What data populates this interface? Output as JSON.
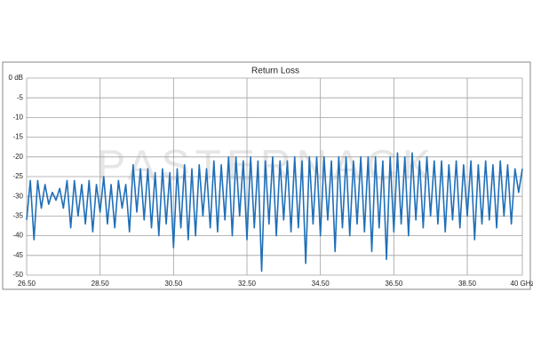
{
  "chart_data": {
    "type": "line",
    "title": "Return Loss",
    "watermark": "PASTERNACK",
    "x": [
      26.5,
      26.6,
      26.7,
      26.8,
      26.9,
      27.0,
      27.1,
      27.2,
      27.3,
      27.4,
      27.5,
      27.6,
      27.7,
      27.8,
      27.9,
      28.0,
      28.1,
      28.2,
      28.3,
      28.4,
      28.5,
      28.6,
      28.7,
      28.8,
      28.9,
      29.0,
      29.1,
      29.2,
      29.3,
      29.4,
      29.5,
      29.6,
      29.7,
      29.8,
      29.9,
      30.0,
      30.1,
      30.2,
      30.3,
      30.4,
      30.5,
      30.6,
      30.7,
      30.8,
      30.9,
      31.0,
      31.1,
      31.2,
      31.3,
      31.4,
      31.5,
      31.6,
      31.7,
      31.8,
      31.9,
      32.0,
      32.1,
      32.2,
      32.3,
      32.4,
      32.5,
      32.6,
      32.7,
      32.8,
      32.9,
      33.0,
      33.1,
      33.2,
      33.3,
      33.4,
      33.5,
      33.6,
      33.7,
      33.8,
      33.9,
      34.0,
      34.1,
      34.2,
      34.3,
      34.4,
      34.5,
      34.6,
      34.7,
      34.8,
      34.9,
      35.0,
      35.1,
      35.2,
      35.3,
      35.4,
      35.5,
      35.6,
      35.7,
      35.8,
      35.9,
      36.0,
      36.1,
      36.2,
      36.3,
      36.4,
      36.5,
      36.6,
      36.7,
      36.8,
      36.9,
      37.0,
      37.1,
      37.2,
      37.3,
      37.4,
      37.5,
      37.6,
      37.7,
      37.8,
      37.9,
      38.0,
      38.1,
      38.2,
      38.3,
      38.4,
      38.5,
      38.6,
      38.7,
      38.8,
      38.9,
      39.0,
      39.1,
      39.2,
      39.3,
      39.4,
      39.5,
      39.6,
      39.7,
      39.8,
      39.9,
      40.0
    ],
    "series": [
      {
        "color": "#1f6fb8",
        "values": [
          -36,
          -26,
          -41,
          -26,
          -33,
          -27,
          -32,
          -29,
          -31,
          -28,
          -33,
          -26,
          -38,
          -26,
          -35,
          -27,
          -37,
          -26,
          -39,
          -27,
          -34,
          -25,
          -37,
          -27,
          -38,
          -26,
          -33,
          -27,
          -39,
          -22,
          -34,
          -23,
          -36,
          -23,
          -38,
          -24,
          -40,
          -23,
          -37,
          -24,
          -43,
          -23,
          -38,
          -22,
          -41,
          -23,
          -40,
          -22,
          -35,
          -23,
          -38,
          -21,
          -39,
          -22,
          -36,
          -20,
          -40,
          -20,
          -35,
          -21,
          -41,
          -20,
          -38,
          -21,
          -49,
          -21,
          -37,
          -20,
          -40,
          -21,
          -36,
          -21,
          -39,
          -20,
          -38,
          -21,
          -47,
          -20,
          -37,
          -20,
          -40,
          -20,
          -36,
          -21,
          -44,
          -20,
          -38,
          -20,
          -40,
          -21,
          -37,
          -20,
          -39,
          -20,
          -44,
          -20,
          -38,
          -21,
          -46,
          -20,
          -39,
          -19,
          -37,
          -20,
          -40,
          -19,
          -36,
          -21,
          -38,
          -20,
          -35,
          -21,
          -37,
          -21,
          -39,
          -22,
          -36,
          -21,
          -38,
          -22,
          -35,
          -21,
          -41,
          -22,
          -37,
          -21,
          -36,
          -22,
          -38,
          -21,
          -35,
          -22,
          -37,
          -23,
          -29,
          -23
        ]
      }
    ],
    "xlim": [
      26.5,
      40
    ],
    "ylim": [
      -50,
      0
    ],
    "xticks": [
      {
        "value": 26.5,
        "label": "26.50"
      },
      {
        "value": 28.5,
        "label": "28.50"
      },
      {
        "value": 30.5,
        "label": "30.50"
      },
      {
        "value": 32.5,
        "label": "32.50"
      },
      {
        "value": 34.5,
        "label": "34.50"
      },
      {
        "value": 36.5,
        "label": "36.50"
      },
      {
        "value": 38.5,
        "label": "38.50"
      },
      {
        "value": 40,
        "label": "40 GHz"
      }
    ],
    "yticks": [
      {
        "value": 0,
        "label": "0 dB"
      },
      -5,
      -10,
      -15,
      -20,
      -25,
      -30,
      -35,
      -40,
      -45,
      -50
    ],
    "grid": true
  }
}
